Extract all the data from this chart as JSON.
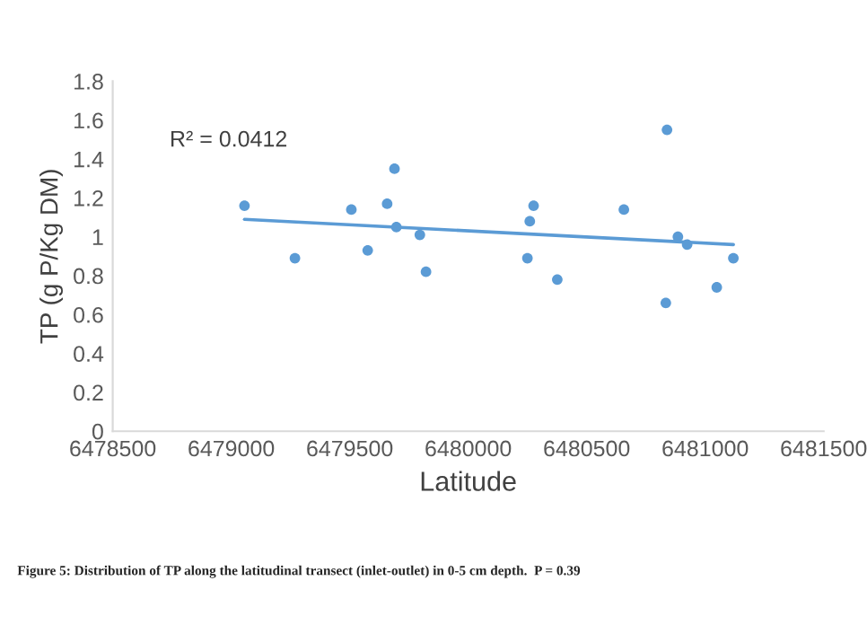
{
  "chart_data": {
    "type": "scatter",
    "xlabel": "Latitude",
    "ylabel": "TP (g P/Kg DM)",
    "series": [
      {
        "color": "#5b9bd5",
        "marker": "circle",
        "x": [
          6479056,
          6479269,
          6479507,
          6479576,
          6479658,
          6479689,
          6479697,
          6479796,
          6479822,
          6480250,
          6480260,
          6480276,
          6480376,
          6480657,
          6480839,
          6480834,
          6480885,
          6480924,
          6481049,
          6481119
        ],
        "values": [
          1.16,
          0.89,
          1.14,
          0.93,
          1.17,
          1.35,
          1.05,
          1.01,
          0.82,
          0.89,
          1.08,
          1.16,
          0.78,
          1.14,
          1.55,
          0.66,
          1.0,
          0.96,
          0.74,
          0.89
        ]
      },
      {
        "type": "line",
        "color": "#5b9bd5",
        "x": [
          6479056,
          6481119
        ],
        "values": [
          1.09,
          0.96
        ]
      }
    ],
    "xlim": [
      6478500,
      6481500
    ],
    "xticks": [
      6478500,
      6479000,
      6479500,
      6480000,
      6480500,
      6481000,
      6481500
    ],
    "ylim": [
      0,
      1.8
    ],
    "yticks": [
      0,
      0.2,
      0.4,
      0.6,
      0.8,
      1,
      1.2,
      1.4,
      1.6,
      1.8
    ],
    "grid": false,
    "annotations": [
      "R² = 0.0412",
      "Figure 5: Distribution of TP along the latitudinal transect (inlet-outlet) in 0-5 cm depth.  P = 0.39"
    ]
  }
}
